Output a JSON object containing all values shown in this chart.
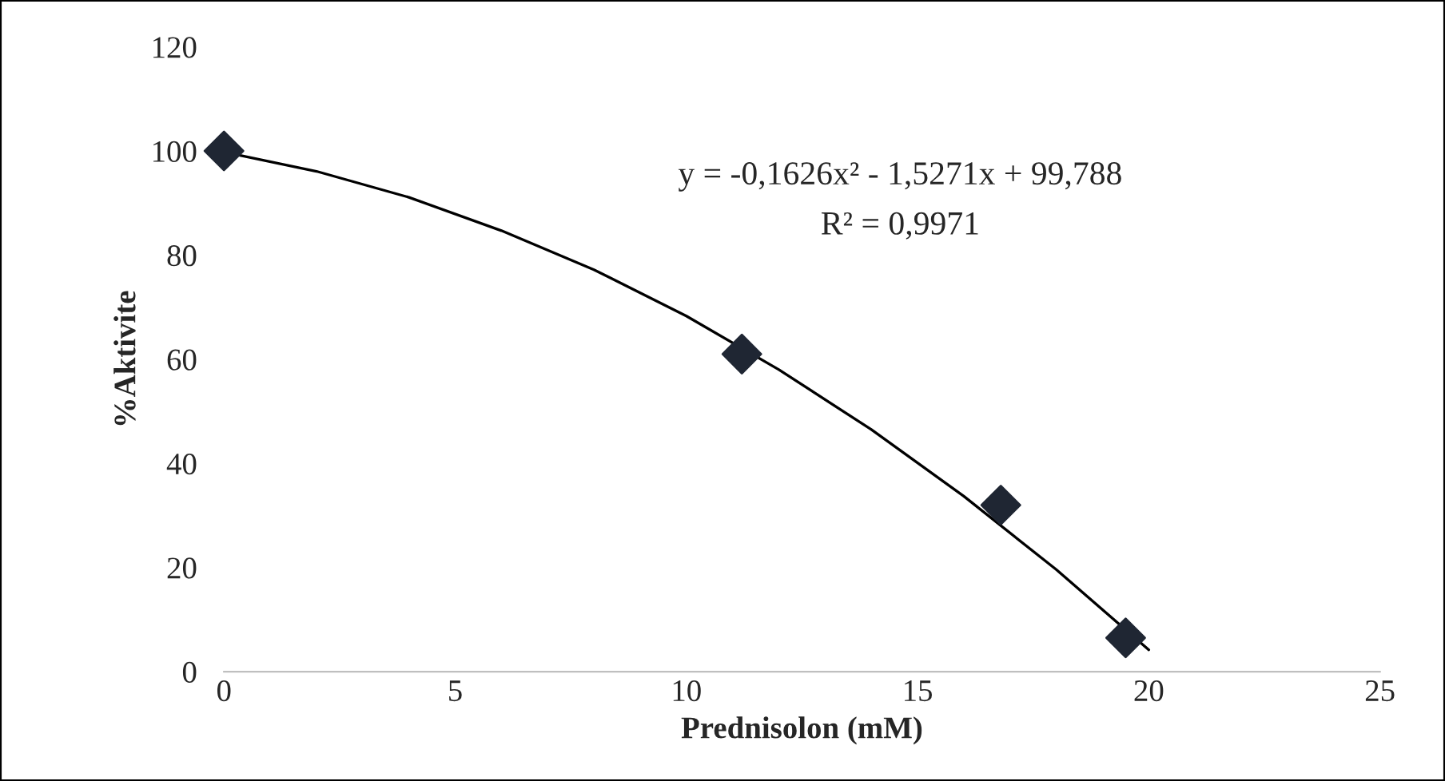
{
  "chart_data": {
    "type": "scatter",
    "xlabel": "Prednisolon (mM)",
    "ylabel": "%Aktivite",
    "xlim": [
      0,
      25
    ],
    "xticks": [
      0,
      5,
      10,
      15,
      20,
      25
    ],
    "ylim": [
      0,
      120
    ],
    "yticks": [
      0,
      20,
      40,
      60,
      80,
      100,
      120
    ],
    "grid": false,
    "legend": false,
    "marker": "diamond",
    "series": [
      {
        "color": "#1f2633",
        "x": [
          0,
          11.2,
          16.8,
          19.5
        ],
        "values": [
          100,
          61,
          32,
          6.5
        ]
      },
      {
        "type": "line",
        "color": "#000000",
        "marker": "none",
        "line_style": "solid",
        "x": [
          0,
          2,
          4,
          6,
          8,
          10,
          12,
          14,
          16,
          18,
          20
        ],
        "values": [
          99.8,
          96.1,
          91.1,
          84.7,
          77.2,
          68.3,
          58.0,
          46.5,
          33.7,
          19.6,
          4.2
        ]
      }
    ],
    "annotations": [
      "y = -0,1626x² - 1,5271x + 99,788",
      "R² = 0,9971"
    ]
  }
}
